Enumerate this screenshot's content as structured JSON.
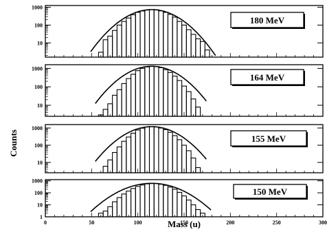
{
  "chart_data": [
    {
      "type": "histogram",
      "label": "180 MeV",
      "yscale": "log",
      "yticks": [
        "1000",
        "100",
        "10"
      ],
      "xlim": [
        0,
        300
      ],
      "x": [
        55,
        60,
        65,
        70,
        75,
        80,
        85,
        90,
        95,
        100,
        105,
        110,
        115,
        120,
        125,
        130,
        135,
        140,
        145,
        150,
        155,
        160,
        165,
        170,
        175,
        180
      ],
      "counts": [
        0.5,
        3,
        15,
        24,
        50,
        100,
        160,
        250,
        380,
        520,
        620,
        700,
        740,
        720,
        630,
        520,
        400,
        280,
        160,
        100,
        55,
        30,
        17,
        12,
        4,
        0.5
      ],
      "fit": "gaussian",
      "fit_peak": 115,
      "fit_max": 740
    },
    {
      "type": "histogram",
      "label": "164 MeV",
      "yscale": "log",
      "yticks": [
        "1000",
        "100",
        "10"
      ],
      "xlim": [
        0,
        300
      ],
      "x": [
        60,
        65,
        70,
        75,
        80,
        85,
        90,
        95,
        100,
        105,
        110,
        115,
        120,
        125,
        130,
        135,
        140,
        145,
        150,
        155,
        160,
        165,
        170
      ],
      "counts": [
        3,
        6,
        12,
        35,
        70,
        150,
        280,
        480,
        750,
        1000,
        1200,
        1300,
        1250,
        1100,
        850,
        600,
        380,
        220,
        110,
        55,
        22,
        8,
        1
      ],
      "fit": "gaussian",
      "fit_peak": 115,
      "fit_max": 1300
    },
    {
      "type": "histogram",
      "label": "155 MeV",
      "yscale": "log",
      "yticks": [
        "1000",
        "100",
        "10"
      ],
      "xlim": [
        0,
        300
      ],
      "x": [
        60,
        65,
        70,
        75,
        80,
        85,
        90,
        95,
        100,
        105,
        110,
        115,
        120,
        125,
        130,
        135,
        140,
        145,
        150,
        155,
        160,
        165,
        170
      ],
      "counts": [
        2,
        6,
        14,
        38,
        80,
        170,
        300,
        500,
        760,
        980,
        1150,
        1200,
        1150,
        1000,
        800,
        560,
        360,
        210,
        100,
        48,
        18,
        5,
        1
      ],
      "fit": "gaussian",
      "fit_peak": 115,
      "fit_max": 1200
    },
    {
      "type": "histogram",
      "label": "150 MeV",
      "yscale": "log",
      "yticks": [
        "1000",
        "100",
        "10",
        "1"
      ],
      "xlim": [
        0,
        300
      ],
      "xticks": [
        "0",
        "50",
        "100",
        "150",
        "200",
        "250",
        "300"
      ],
      "xlabel": "Mass (u)",
      "x": [
        55,
        60,
        65,
        70,
        75,
        80,
        85,
        90,
        95,
        100,
        105,
        110,
        115,
        120,
        125,
        130,
        135,
        140,
        145,
        150,
        155,
        160,
        165,
        170,
        175
      ],
      "counts": [
        1,
        2,
        3,
        7,
        18,
        40,
        80,
        140,
        230,
        340,
        450,
        560,
        620,
        600,
        520,
        420,
        300,
        200,
        110,
        55,
        25,
        10,
        4,
        2,
        1
      ],
      "fit": "gaussian",
      "fit_peak": 115,
      "fit_max": 620
    }
  ],
  "ylabel": "Counts"
}
